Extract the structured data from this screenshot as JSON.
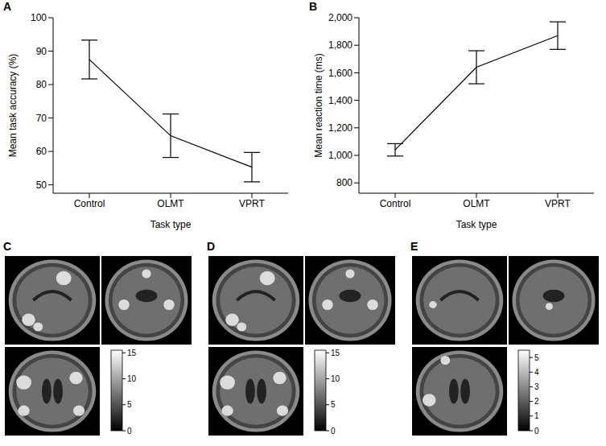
{
  "chart_data": [
    {
      "panel": "A",
      "type": "line",
      "categories": [
        "Control",
        "OLMT",
        "VPRT"
      ],
      "values": [
        87.5,
        64.7,
        55.3
      ],
      "errors": [
        5.8,
        6.5,
        4.4
      ],
      "color": "#000000",
      "marker": "none",
      "line_style": "solid",
      "x_label": "Task type",
      "y_label": "Mean task accuracy (%)",
      "ylim": [
        47.5,
        100
      ],
      "yticks": [
        50,
        60,
        70,
        80,
        90,
        100
      ],
      "grid": false
    },
    {
      "panel": "B",
      "type": "line",
      "categories": [
        "Control",
        "OLMT",
        "VPRT"
      ],
      "values": [
        1040,
        1640,
        1870
      ],
      "errors": [
        45,
        120,
        100
      ],
      "color": "#000000",
      "marker": "none",
      "line_style": "solid",
      "x_label": "Task type",
      "y_label": "Mean reaction time (ms)",
      "ylim": [
        725,
        2000
      ],
      "yticks": [
        800,
        {
          "value": 1000,
          "label": "1,000"
        },
        {
          "value": 1200,
          "label": "1,200"
        },
        {
          "value": 1400,
          "label": "1,400"
        },
        {
          "value": 1600,
          "label": "1,600"
        },
        {
          "value": 1800,
          "label": "1,800"
        },
        {
          "value": 2000,
          "label": "2,000"
        }
      ],
      "grid": false
    }
  ],
  "images": [
    {
      "panel": "C",
      "colorbar": {
        "range": [
          0,
          15.5
        ],
        "ticks": [
          0,
          5,
          10,
          15
        ]
      }
    },
    {
      "panel": "D",
      "colorbar": {
        "range": [
          0,
          15.5
        ],
        "ticks": [
          0,
          5,
          10,
          15
        ]
      }
    },
    {
      "panel": "E",
      "colorbar": {
        "range": [
          0,
          5.5
        ],
        "ticks": [
          0,
          1,
          2,
          3,
          4,
          5
        ]
      }
    }
  ]
}
